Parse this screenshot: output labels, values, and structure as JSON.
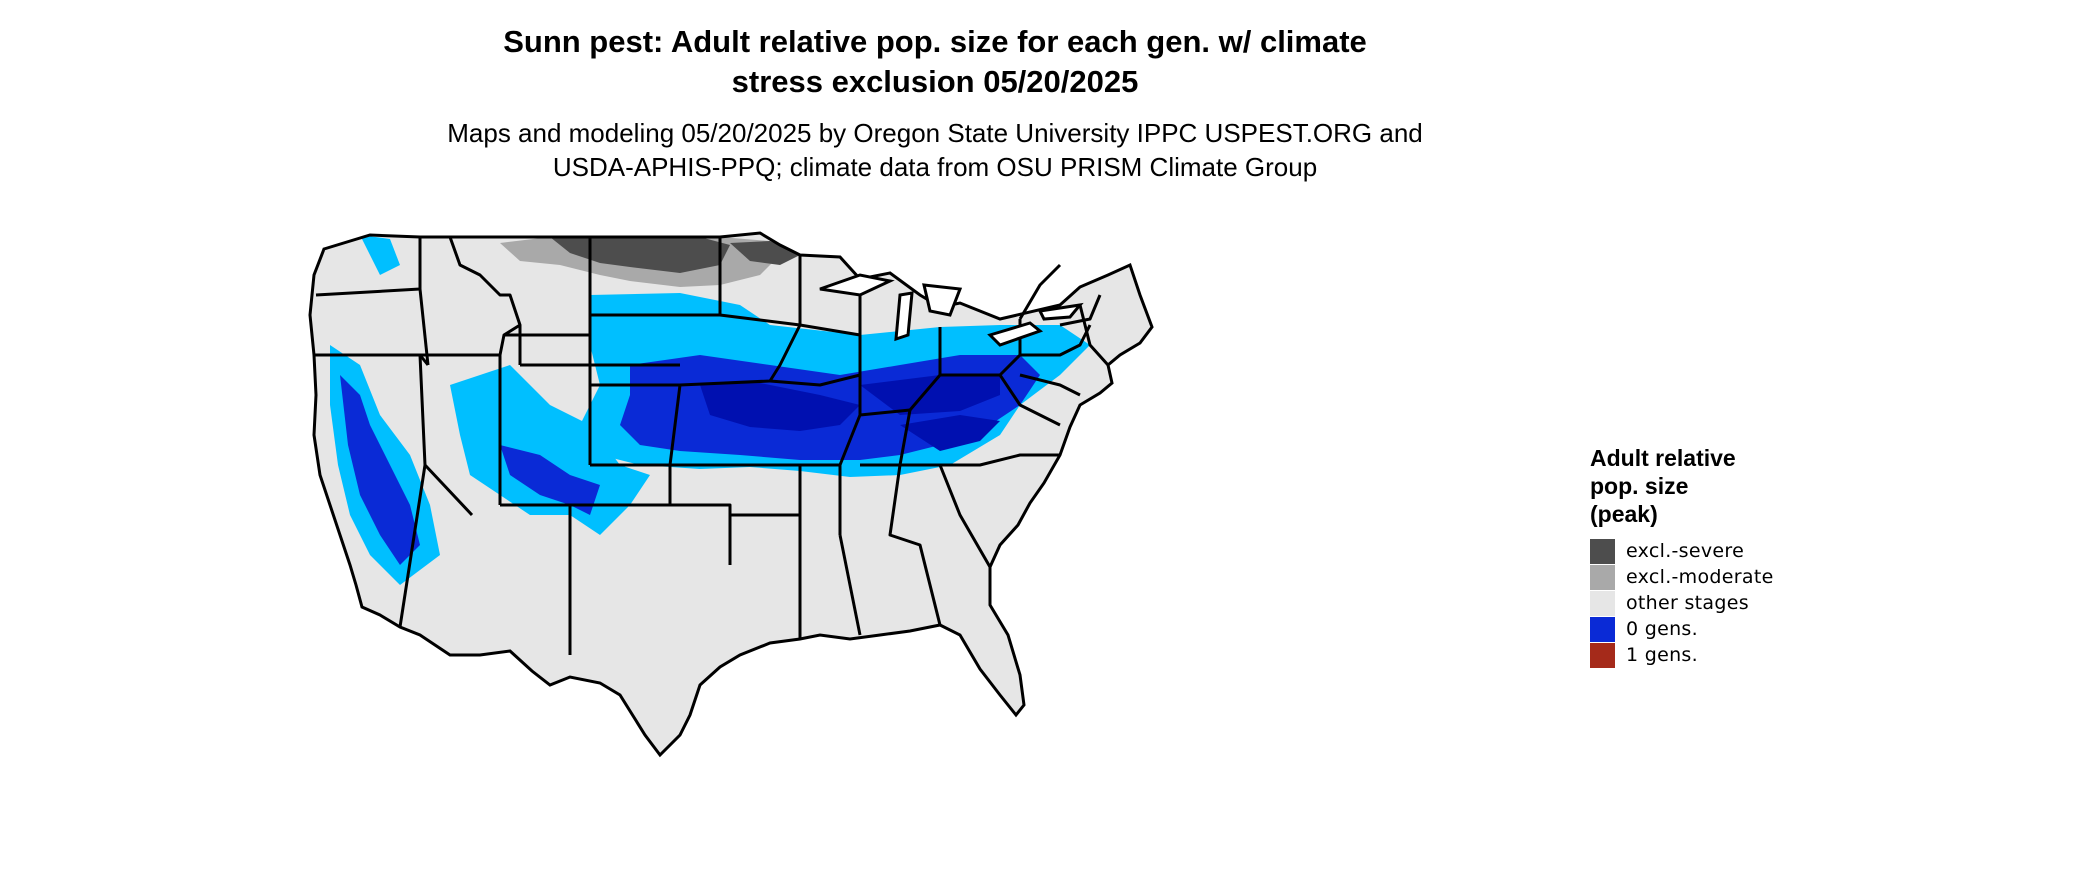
{
  "title_line1": "Sunn pest: Adult relative pop. size for each gen. w/ climate",
  "title_line2": "stress exclusion 05/20/2025",
  "subtitle_line1": "Maps and modeling 05/20/2025 by Oregon State University IPPC USPEST.ORG and",
  "subtitle_line2": "USDA-APHIS-PPQ; climate data from OSU PRISM Climate Group",
  "legend": {
    "title_line1": "Adult relative",
    "title_line2": "pop. size",
    "title_line3": "(peak)",
    "items": [
      {
        "label": "excl.-severe",
        "color": "#4d4d4d"
      },
      {
        "label": "excl.-moderate",
        "color": "#a9a9a9"
      },
      {
        "label": "other stages",
        "color": "#e6e6e6"
      },
      {
        "label": "0 gens.",
        "color": "#0a2ad6"
      },
      {
        "label": "1 gens.",
        "color": "#a52a1a"
      }
    ]
  },
  "map_colors": {
    "background_land": "#e6e6e6",
    "light_blue": "#00bfff",
    "mid_blue": "#0a2ad6",
    "dark_blue": "#0010b0",
    "excl_severe": "#4d4d4d",
    "excl_moderate": "#a9a9a9",
    "border": "#000000"
  }
}
